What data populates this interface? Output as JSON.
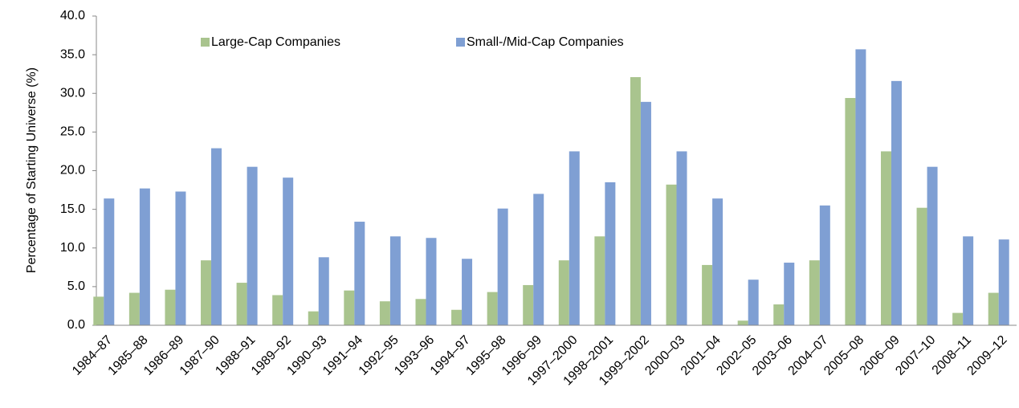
{
  "chart_data": {
    "type": "bar",
    "y_label": "Percentage of Starting Universe (%)",
    "categories": [
      "1984–87",
      "1985–88",
      "1986–89",
      "1987–90",
      "1988–91",
      "1989–92",
      "1990–93",
      "1991–94",
      "1992–95",
      "1993–96",
      "1994–97",
      "1995–98",
      "1996–99",
      "1997–2000",
      "1998–2001",
      "1999–2002",
      "2000–03",
      "2001–04",
      "2002–05",
      "2003–06",
      "2004–07",
      "2005–08",
      "2006–09",
      "2007–10",
      "2008–11",
      "2009–12"
    ],
    "series": [
      {
        "name": "Large-Cap Companies",
        "color": "#a9c48e",
        "values": [
          3.7,
          4.2,
          4.6,
          8.4,
          5.5,
          3.9,
          1.8,
          4.5,
          3.1,
          3.4,
          2.0,
          4.3,
          5.2,
          8.4,
          11.5,
          32.1,
          18.2,
          7.8,
          0.6,
          2.7,
          8.4,
          29.4,
          22.5,
          15.2,
          1.6,
          4.2
        ]
      },
      {
        "name": "Small-/Mid-Cap Companies",
        "color": "#7f9fd3",
        "values": [
          16.4,
          17.7,
          17.3,
          22.9,
          20.5,
          19.1,
          8.8,
          13.4,
          11.5,
          11.3,
          8.6,
          15.1,
          17.0,
          22.5,
          18.5,
          28.9,
          22.5,
          16.4,
          5.9,
          8.1,
          15.5,
          35.7,
          31.6,
          20.5,
          11.5,
          11.1
        ]
      }
    ],
    "ylim": [
      0,
      40
    ],
    "yticks": [
      {
        "value": 0,
        "label": "0.0"
      },
      {
        "value": 5,
        "label": "5.0"
      },
      {
        "value": 10,
        "label": "10.0"
      },
      {
        "value": 15,
        "label": "15.0"
      },
      {
        "value": 20,
        "label": "20.0"
      },
      {
        "value": 25,
        "label": "25.0"
      },
      {
        "value": 30,
        "label": "30.0"
      },
      {
        "value": 35,
        "label": "35.0"
      },
      {
        "value": 40,
        "label": "40.0"
      }
    ],
    "legend": "top-left"
  }
}
